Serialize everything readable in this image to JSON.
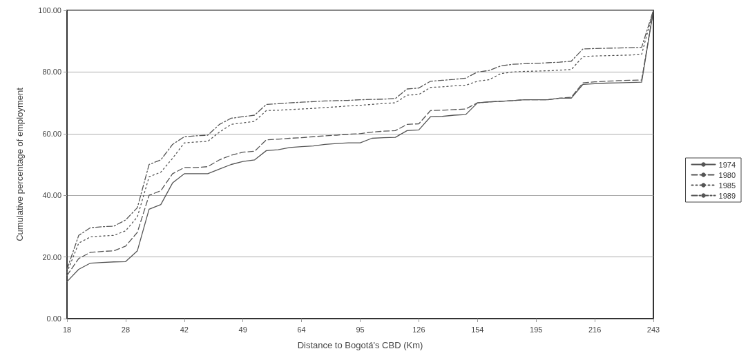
{
  "chart_data": {
    "type": "line",
    "xlabel": "Distance to Bogotá's CBD (Km)",
    "ylabel": "Cumulative percentage of employment",
    "categories": [
      "18",
      null,
      null,
      null,
      null,
      "28",
      null,
      null,
      null,
      null,
      "42",
      null,
      null,
      null,
      null,
      "49",
      null,
      null,
      null,
      null,
      "64",
      null,
      null,
      null,
      null,
      "95",
      null,
      null,
      null,
      null,
      "126",
      null,
      null,
      null,
      null,
      "154",
      null,
      null,
      null,
      null,
      "195",
      null,
      null,
      null,
      null,
      "216",
      null,
      null,
      null,
      null,
      "243"
    ],
    "ylim": [
      0,
      100
    ],
    "yticks": [
      {
        "value": 0,
        "label": "0.00"
      },
      {
        "value": 20,
        "label": "20.00"
      },
      {
        "value": 40,
        "label": "40.00"
      },
      {
        "value": 60,
        "label": "60.00"
      },
      {
        "value": 80,
        "label": "80.00"
      },
      {
        "value": 100,
        "label": "100.00"
      }
    ],
    "grid": "y",
    "legend": "right",
    "marker": "none",
    "series": [
      {
        "name": "1974",
        "color": "#555555",
        "line_style": "solid",
        "values": [
          12,
          16,
          18,
          18.2,
          18.4,
          18.5,
          22,
          35.5,
          37,
          44,
          47,
          47,
          47,
          48.5,
          50,
          51,
          51.5,
          54.5,
          54.8,
          55.5,
          55.8,
          56,
          56.5,
          56.8,
          57,
          57,
          58.5,
          58.7,
          58.8,
          61,
          61.2,
          65.5,
          65.6,
          66,
          66.2,
          70,
          70.3,
          70.5,
          70.7,
          71,
          71,
          71,
          71.5,
          71.5,
          76,
          76.2,
          76.4,
          76.5,
          76.6,
          76.7,
          100
        ]
      },
      {
        "name": "1980",
        "color": "#555555",
        "line_style": "dashed",
        "values": [
          14,
          19.5,
          21.5,
          21.8,
          22,
          23.5,
          28,
          40,
          41.5,
          47,
          49,
          49,
          49.3,
          51.5,
          53,
          54,
          54.3,
          58,
          58.2,
          58.5,
          58.7,
          59,
          59.3,
          59.5,
          59.8,
          60,
          60.5,
          60.8,
          61,
          63,
          63.2,
          67.5,
          67.6,
          67.8,
          68,
          70,
          70.3,
          70.5,
          70.7,
          71,
          71,
          71,
          71.5,
          71.8,
          76.5,
          76.8,
          77,
          77.2,
          77.3,
          77.4,
          100
        ]
      },
      {
        "name": "1985",
        "color": "#555555",
        "line_style": "dotted",
        "values": [
          15,
          24.5,
          26.5,
          26.8,
          27,
          28.5,
          33,
          46,
          47.5,
          52,
          57,
          57.3,
          57.5,
          60.5,
          63,
          63.5,
          64,
          67.5,
          67.6,
          67.8,
          68,
          68.2,
          68.5,
          68.7,
          69,
          69.2,
          69.5,
          69.8,
          70,
          72.5,
          72.7,
          75,
          75.2,
          75.5,
          75.7,
          77,
          77.5,
          79.5,
          80,
          80.2,
          80.3,
          80.4,
          80.6,
          80.8,
          85,
          85.2,
          85.3,
          85.4,
          85.5,
          85.7,
          100
        ]
      },
      {
        "name": "1989",
        "color": "#555555",
        "line_style": "dashdot",
        "values": [
          16,
          27,
          29.5,
          29.8,
          30,
          32,
          36,
          50,
          51.5,
          56.5,
          59,
          59.3,
          59.5,
          63,
          65,
          65.5,
          66,
          69.5,
          69.7,
          70,
          70.2,
          70.4,
          70.6,
          70.7,
          70.8,
          71,
          71.1,
          71.2,
          71.4,
          74.5,
          74.8,
          77,
          77.3,
          77.6,
          78,
          80,
          80.5,
          82,
          82.5,
          82.7,
          82.8,
          83,
          83.2,
          83.5,
          87.5,
          87.6,
          87.7,
          87.8,
          87.9,
          88,
          100
        ]
      }
    ]
  }
}
